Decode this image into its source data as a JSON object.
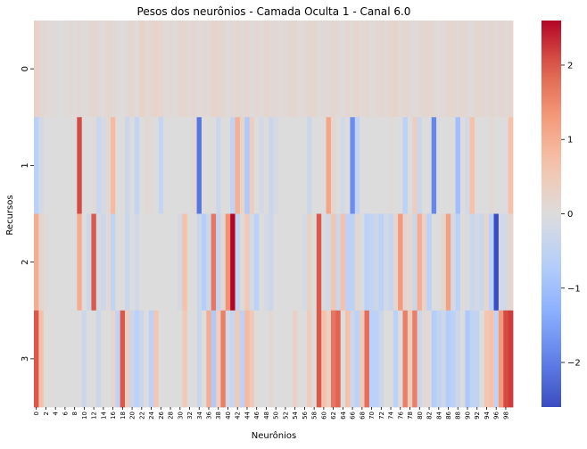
{
  "chart_data": {
    "type": "heatmap",
    "title": "Pesos dos neurônios - Camada Oculta 1 - Canal 6.0",
    "xlabel": "Neurônios",
    "ylabel": "Recursos",
    "colormap": "coolwarm",
    "vmin": -2.6,
    "vmax": 2.6,
    "x_categories": [
      "0",
      "1",
      "2",
      "3",
      "4",
      "5",
      "6",
      "7",
      "8",
      "9",
      "10",
      "11",
      "12",
      "13",
      "14",
      "15",
      "16",
      "17",
      "18",
      "19",
      "20",
      "21",
      "22",
      "23",
      "24",
      "25",
      "26",
      "27",
      "28",
      "29",
      "30",
      "31",
      "32",
      "33",
      "34",
      "35",
      "36",
      "37",
      "38",
      "39",
      "40",
      "41",
      "42",
      "43",
      "44",
      "45",
      "46",
      "47",
      "48",
      "49",
      "50",
      "51",
      "52",
      "53",
      "54",
      "55",
      "56",
      "57",
      "58",
      "59",
      "60",
      "61",
      "62",
      "63",
      "64",
      "65",
      "66",
      "67",
      "68",
      "69",
      "70",
      "71",
      "72",
      "73",
      "74",
      "75",
      "76",
      "77",
      "78",
      "79",
      "80",
      "81",
      "82",
      "83",
      "84",
      "85",
      "86",
      "87",
      "88",
      "89",
      "90",
      "91",
      "92",
      "93",
      "94",
      "95",
      "96",
      "97",
      "98",
      "99"
    ],
    "x_tick_labels": [
      "0",
      "2",
      "4",
      "6",
      "8",
      "10",
      "12",
      "14",
      "16",
      "18",
      "20",
      "22",
      "24",
      "26",
      "28",
      "30",
      "32",
      "34",
      "36",
      "38",
      "40",
      "42",
      "44",
      "46",
      "48",
      "50",
      "52",
      "54",
      "56",
      "58",
      "60",
      "62",
      "64",
      "66",
      "68",
      "70",
      "72",
      "74",
      "76",
      "78",
      "80",
      "82",
      "84",
      "86",
      "88",
      "90",
      "92",
      "94",
      "96",
      "98"
    ],
    "y_categories": [
      "0",
      "1",
      "2",
      "3"
    ],
    "colorbar_ticks": [
      "-2",
      "-1",
      "0",
      "1",
      "2"
    ],
    "values": [
      [
        0.3,
        0.15,
        0.1,
        0.05,
        0.05,
        0,
        0.05,
        0.1,
        0.05,
        0.1,
        0.05,
        0.1,
        0.15,
        0.1,
        0.05,
        0.15,
        0.1,
        0.05,
        0,
        0.1,
        0.15,
        0.05,
        0.3,
        0.1,
        0.2,
        0.25,
        0.2,
        0.05,
        0.1,
        0.05,
        0.15,
        0.2,
        0.1,
        0.15,
        0.05,
        0.1,
        0.1,
        0.25,
        0.2,
        0.15,
        0.05,
        0.1,
        0.15,
        0.1,
        0.15,
        0.05,
        0.1,
        0.05,
        0.15,
        0.1,
        0.1,
        0.05,
        0.1,
        0.15,
        0.2,
        0.05,
        0.1,
        0.15,
        0.2,
        0.05,
        0.1,
        0.1,
        0.15,
        0.1,
        0.05,
        0.15,
        0.1,
        0.2,
        0.1,
        0.15,
        0.05,
        0.1,
        0.15,
        0.1,
        0.2,
        0.25,
        0.1,
        0.15,
        0.1,
        0.05,
        0.1,
        0.15,
        0.2,
        0.1,
        0.05,
        0.1,
        0.15,
        0.2,
        0.1,
        0.15,
        0.1,
        0.05,
        0.2,
        0.15,
        0.1,
        0.15,
        0.1,
        0.15,
        0.1,
        0.2
      ],
      [
        -0.6,
        -0.2,
        0,
        0,
        0,
        0,
        0,
        0,
        0,
        2.1,
        0,
        0,
        0.05,
        -0.35,
        -0.15,
        0.1,
        0.8,
        0,
        0,
        -0.3,
        0,
        -0.45,
        0,
        0.1,
        0.05,
        0,
        -0.4,
        0,
        0,
        0,
        0,
        0,
        0,
        0.1,
        -2.1,
        0,
        0,
        0,
        -0.3,
        0,
        0,
        -0.5,
        0.95,
        0.25,
        -0.8,
        0.4,
        0,
        -0.2,
        0,
        -0.3,
        -0.15,
        0,
        0,
        0,
        0,
        0,
        0,
        -0.3,
        0,
        0,
        0,
        1.15,
        0.2,
        0,
        -0.2,
        0,
        -1.8,
        -0.5,
        0,
        0,
        0,
        0,
        0,
        0,
        0.05,
        0,
        0,
        -0.6,
        0,
        0.4,
        -0.3,
        0,
        0,
        -1.9,
        0,
        0,
        0,
        0,
        -1.0,
        0,
        -0.2,
        0.7,
        0,
        0,
        0,
        0.1,
        0,
        0,
        0,
        0.7
      ],
      [
        1.0,
        0.2,
        0.05,
        0,
        0,
        0,
        0,
        0,
        0,
        1.0,
        0,
        -0.3,
        2.0,
        -0.15,
        -0.3,
        0.1,
        -0.5,
        0,
        0,
        -0.35,
        0,
        -0.2,
        0,
        0,
        0,
        0,
        0,
        0,
        0,
        0,
        -0.2,
        0.7,
        0,
        0,
        -0.3,
        -0.7,
        -0.3,
        1.7,
        -0.45,
        0.2,
        1.4,
        2.6,
        -0.5,
        0.1,
        0.5,
        -0.2,
        -0.6,
        0,
        -0.15,
        -0.3,
        0,
        0,
        0,
        0,
        0,
        0,
        -0.15,
        0.3,
        0,
        2.0,
        -0.1,
        -0.2,
        0.6,
        -0.3,
        0.7,
        -0.6,
        -0.6,
        0.2,
        -0.1,
        -0.6,
        -0.45,
        -0.3,
        -0.6,
        -0.2,
        -0.4,
        0.2,
        1.3,
        0.15,
        0.2,
        -0.3,
        1.0,
        0.3,
        -0.6,
        0,
        0,
        0.2,
        1.2,
        -0.15,
        -0.6,
        0.05,
        -0.1,
        -0.3,
        -0.2,
        -0.3,
        0.2,
        -0.6,
        -2.9,
        -0.2,
        -0.2,
        0.2
      ],
      [
        2.0,
        0.7,
        0,
        0,
        0,
        0,
        0,
        0,
        0,
        0,
        -0.3,
        0,
        0,
        -0.3,
        0,
        0,
        0.2,
        -0.5,
        2.0,
        0.4,
        -0.3,
        -0.6,
        -0.3,
        0,
        -0.6,
        0.6,
        0,
        0,
        0,
        0,
        0,
        0.5,
        0,
        0,
        -0.3,
        0,
        1.0,
        -0.8,
        0.4,
        1.6,
        -0.2,
        -0.4,
        0.5,
        -0.6,
        0.8,
        0.5,
        0,
        0,
        0,
        0.1,
        0,
        0,
        0,
        0,
        0.3,
        0,
        0,
        0.4,
        0,
        2.0,
        0.7,
        0.3,
        1.7,
        1.9,
        0,
        0.7,
        -0.3,
        -0.6,
        0.5,
        1.8,
        -0.6,
        -0.6,
        -0.3,
        0,
        0,
        -0.6,
        0,
        1.6,
        0.4,
        1.6,
        -0.3,
        0.1,
        0.05,
        -0.7,
        -0.5,
        -0.3,
        -0.7,
        -0.6,
        -0.3,
        0,
        -0.8,
        -0.5,
        -0.5,
        0,
        0.6,
        0.7,
        -0.5,
        1.3,
        2.1,
        2.2
      ]
    ]
  }
}
